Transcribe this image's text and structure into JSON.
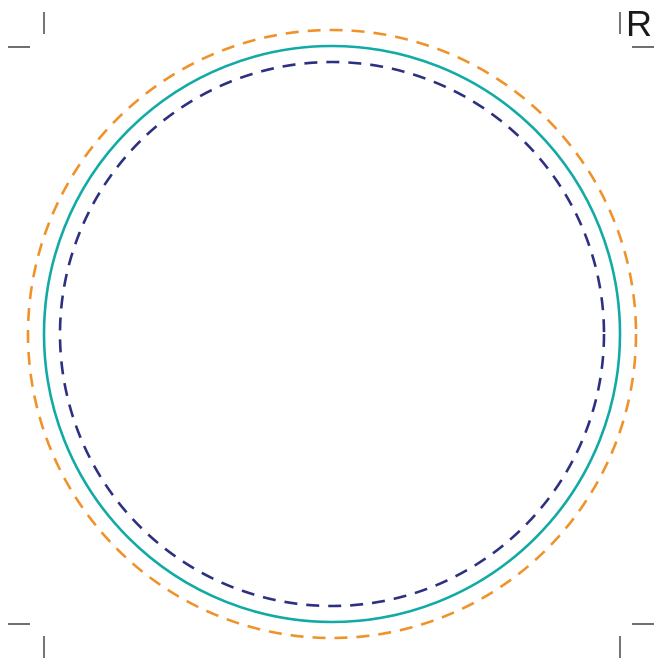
{
  "template": {
    "corner_label": "R",
    "colors": {
      "bleed_line": "#f0922a",
      "cut_line": "#12aaa5",
      "safe_line": "#2d2f80",
      "crop_marks": "#1a1a1a",
      "background": "#ffffff"
    },
    "lines": [
      {
        "role": "bleed-line",
        "style": "dashed",
        "color": "#f0922a"
      },
      {
        "role": "cut-line",
        "style": "solid",
        "color": "#12aaa5"
      },
      {
        "role": "safe-line",
        "style": "dashed",
        "color": "#2d2f80"
      }
    ],
    "crop_marks": {
      "corners": [
        "top-left",
        "top-right",
        "bottom-left",
        "bottom-right"
      ]
    }
  }
}
